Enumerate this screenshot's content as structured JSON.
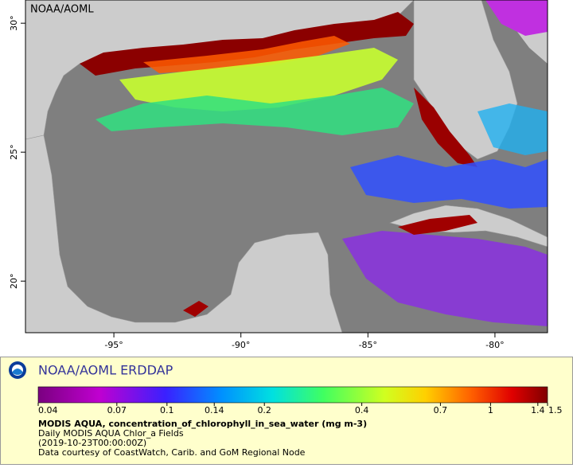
{
  "map": {
    "label": "NOAA/AOML",
    "xlim": [
      -98.48,
      -77.93
    ],
    "xticks": [
      {
        "value": -95,
        "label": "-95°"
      },
      {
        "value": -90,
        "label": "-90°"
      },
      {
        "value": -85,
        "label": "-85°"
      },
      {
        "value": -80,
        "label": "-80°"
      }
    ],
    "ylim": [
      18,
      30.9
    ],
    "yticks": [
      {
        "value": 20,
        "label": "20°"
      },
      {
        "value": 25,
        "label": "25°"
      },
      {
        "value": 30,
        "label": "30°"
      }
    ]
  },
  "footer": {
    "title": "NOAA/AOML ERDDAP",
    "colorbar": {
      "lim": [
        0.04,
        1.5
      ],
      "scale": "log",
      "ticks": [
        0.04,
        0.07,
        0.1,
        0.14,
        0.2,
        0.4,
        0.7,
        1,
        1.4,
        1.5
      ]
    },
    "variable": "MODIS AQUA, concentration_of_chlorophyll_in_sea_water (mg m-3)",
    "dataset": "Daily MODIS AQUA Chlor_a Fields",
    "time": "(2019-10-23T00:00:00Z)",
    "credit": "Data courtesy of CoastWatch, Carib. and GoM Regional Node"
  }
}
